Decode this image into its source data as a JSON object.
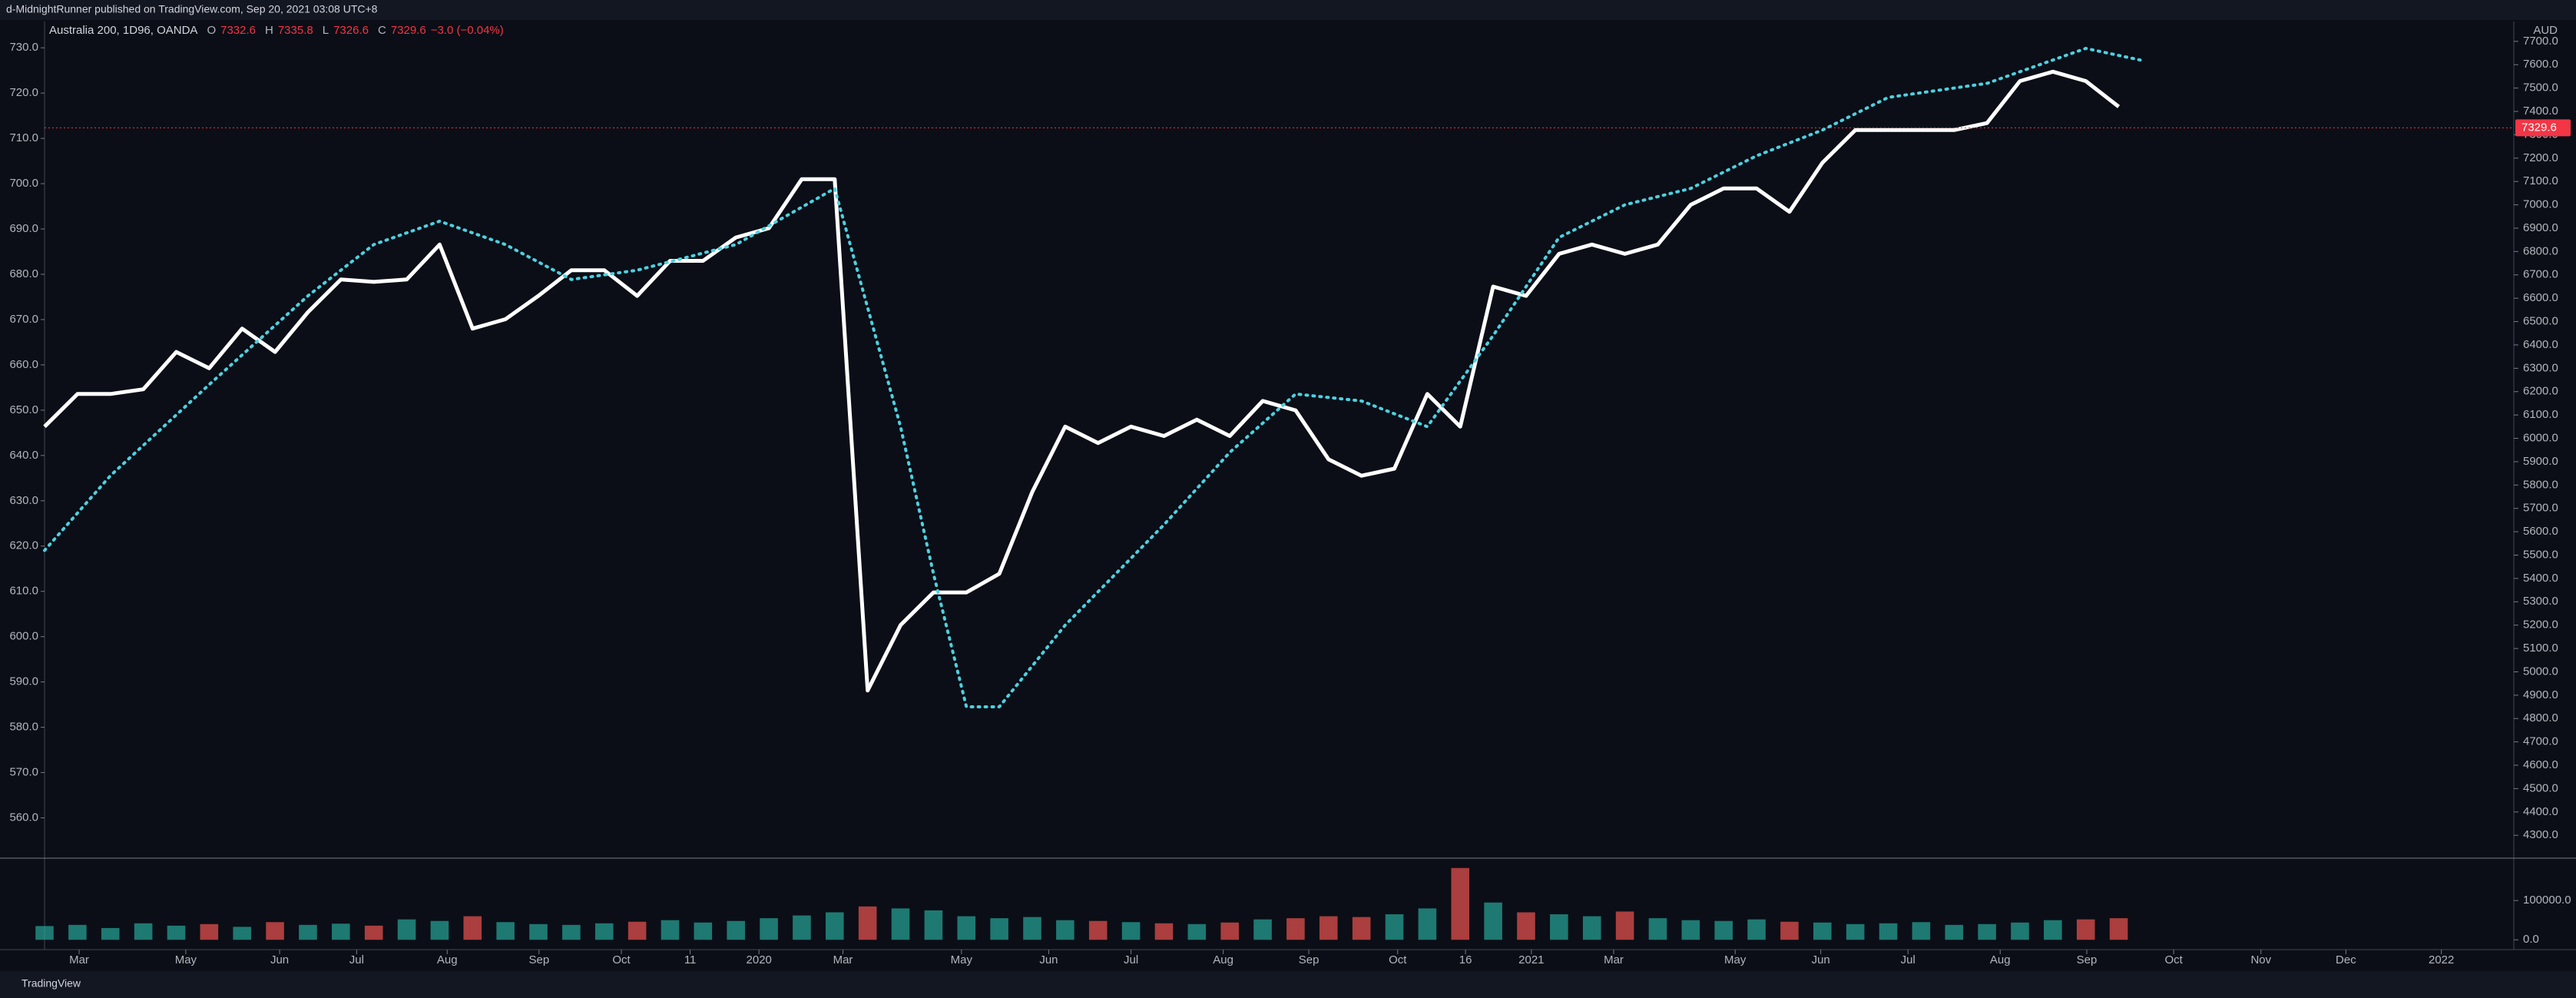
{
  "header": "d-MidnightRunner published on TradingView.com, Sep 20, 2021 03:08 UTC+8",
  "footer": "TradingView",
  "chart_data": [
    {
      "type": "line",
      "symbol": "Australia 200, 1D96, OANDA",
      "currency": "AUD",
      "ohlc": [
        {
          "label": "O",
          "value": 7332.6
        },
        {
          "label": "H",
          "value": 7335.8
        },
        {
          "label": "L",
          "value": 7326.6
        },
        {
          "label": "C",
          "value": 7329.6
        }
      ],
      "change": "−3.0 (−0.04%)",
      "xlim": [
        0,
        75
      ],
      "xticks": [
        {
          "value": 1.05,
          "label": "Mar"
        },
        {
          "value": 4.29,
          "label": "May"
        },
        {
          "value": 7.14,
          "label": "Jun"
        },
        {
          "value": 9.48,
          "label": "Jul"
        },
        {
          "value": 12.23,
          "label": "Aug"
        },
        {
          "value": 15.02,
          "label": "Sep"
        },
        {
          "value": 17.52,
          "label": "Oct"
        },
        {
          "value": 19.61,
          "label": "11"
        },
        {
          "value": 21.7,
          "label": "2020"
        },
        {
          "value": 24.25,
          "label": "Mar"
        },
        {
          "value": 27.85,
          "label": "May"
        },
        {
          "value": 30.5,
          "label": "Jun"
        },
        {
          "value": 33,
          "label": "Jul"
        },
        {
          "value": 35.8,
          "label": "Aug"
        },
        {
          "value": 38.4,
          "label": "Sep"
        },
        {
          "value": 41.1,
          "label": "Oct"
        },
        {
          "value": 43.16,
          "label": "16"
        },
        {
          "value": 45.16,
          "label": "2021"
        },
        {
          "value": 47.66,
          "label": "Mar"
        },
        {
          "value": 51.35,
          "label": "May"
        },
        {
          "value": 53.95,
          "label": "Jun"
        },
        {
          "value": 56.6,
          "label": "Jul"
        },
        {
          "value": 59.4,
          "label": "Aug"
        },
        {
          "value": 62.03,
          "label": "Sep"
        },
        {
          "value": 64.67,
          "label": "Oct"
        },
        {
          "value": 67.32,
          "label": "Nov"
        },
        {
          "value": 69.9,
          "label": "Dec"
        },
        {
          "value": 72.8,
          "label": "2022"
        }
      ],
      "ylim": [
        4202,
        7785
      ],
      "yticks": [
        {
          "value": 4300,
          "label": "4300.0"
        },
        {
          "value": 4400,
          "label": "4400.0"
        },
        {
          "value": 4500,
          "label": "4500.0"
        },
        {
          "value": 4600,
          "label": "4600.0"
        },
        {
          "value": 4700,
          "label": "4700.0"
        },
        {
          "value": 4800,
          "label": "4800.0"
        },
        {
          "value": 4900,
          "label": "4900.0"
        },
        {
          "value": 5000,
          "label": "5000.0"
        },
        {
          "value": 5100,
          "label": "5100.0"
        },
        {
          "value": 5200,
          "label": "5200.0"
        },
        {
          "value": 5300,
          "label": "5300.0"
        },
        {
          "value": 5400,
          "label": "5400.0"
        },
        {
          "value": 5500,
          "label": "5500.0"
        },
        {
          "value": 5600,
          "label": "5600.0"
        },
        {
          "value": 5700,
          "label": "5700.0"
        },
        {
          "value": 5800,
          "label": "5800.0"
        },
        {
          "value": 5900,
          "label": "5900.0"
        },
        {
          "value": 6000,
          "label": "6000.0"
        },
        {
          "value": 6100,
          "label": "6100.0"
        },
        {
          "value": 6200,
          "label": "6200.0"
        },
        {
          "value": 6300,
          "label": "6300.0"
        },
        {
          "value": 6400,
          "label": "6400.0"
        },
        {
          "value": 6500,
          "label": "6500.0"
        },
        {
          "value": 6600,
          "label": "6600.0"
        },
        {
          "value": 6700,
          "label": "6700.0"
        },
        {
          "value": 6800,
          "label": "6800.0"
        },
        {
          "value": 6900,
          "label": "6900.0"
        },
        {
          "value": 7000,
          "label": "7000.0"
        },
        {
          "value": 7100,
          "label": "7100.0"
        },
        {
          "value": 7200,
          "label": "7200.0"
        },
        {
          "value": 7300,
          "label": "7300.0"
        },
        {
          "value": 7400,
          "label": "7400.0"
        },
        {
          "value": 7500,
          "label": "7500.0"
        },
        {
          "value": 7600,
          "label": "7600.0"
        },
        {
          "value": 7700,
          "label": "7700.0"
        }
      ],
      "y2lim": [
        551.1,
        735.8
      ],
      "y2ticks": [
        {
          "value": 560,
          "label": "560.0"
        },
        {
          "value": 570,
          "label": "570.0"
        },
        {
          "value": 580,
          "label": "580.0"
        },
        {
          "value": 590,
          "label": "590.0"
        },
        {
          "value": 600,
          "label": "600.0"
        },
        {
          "value": 610,
          "label": "610.0"
        },
        {
          "value": 620,
          "label": "620.0"
        },
        {
          "value": 630,
          "label": "630.0"
        },
        {
          "value": 640,
          "label": "640.0"
        },
        {
          "value": 650,
          "label": "650.0"
        },
        {
          "value": 660,
          "label": "660.0"
        },
        {
          "value": 670,
          "label": "670.0"
        },
        {
          "value": 680,
          "label": "680.0"
        },
        {
          "value": 690,
          "label": "690.0"
        },
        {
          "value": 700,
          "label": "700.0"
        },
        {
          "value": 710,
          "label": "710.0"
        },
        {
          "value": 720,
          "label": "720.0"
        },
        {
          "value": 730,
          "label": "730.0"
        }
      ],
      "grid": false,
      "series": [
        {
          "color": "#ffffff",
          "values": [
            6050,
            6190,
            6190,
            6210,
            6370,
            6300,
            6470,
            6370,
            6540,
            6680,
            6670,
            6680,
            6830,
            6470,
            6510,
            6610,
            6720,
            6720,
            6610,
            6760,
            6760,
            6860,
            6900,
            7110,
            7110,
            4920,
            5200,
            5340,
            5340,
            5420,
            5770,
            6050,
            5980,
            6050,
            6010,
            6080,
            6010,
            6160,
            6120,
            5910,
            5840,
            5870,
            6190,
            6050,
            6650,
            6610,
            6790,
            6830,
            6790,
            6830,
            7000,
            7070,
            7070,
            6970,
            7180,
            7320,
            7320,
            7320,
            7320,
            7350,
            7530,
            7570,
            7530,
            7420
          ]
        },
        {
          "color": "#4dd0e1",
          "dashed": true,
          "x": [
            0,
            2,
            5,
            8,
            10,
            12,
            14,
            16,
            18,
            21,
            24,
            26,
            27,
            28,
            29,
            31,
            34,
            36,
            38,
            40,
            42,
            44,
            46,
            48,
            50,
            52,
            54,
            56,
            59,
            62,
            63.65
          ],
          "values": [
            5520,
            5840,
            6230,
            6610,
            6830,
            6930,
            6830,
            6680,
            6720,
            6830,
            7070,
            6050,
            5420,
            4850,
            4850,
            5200,
            5630,
            5940,
            6190,
            6160,
            6050,
            6440,
            6860,
            7000,
            7070,
            7210,
            7320,
            7460,
            7520,
            7670,
            7620
          ]
        }
      ]
    },
    {
      "type": "bar",
      "up_color": "#26a69a",
      "down_color": "#ef5350",
      "xlim": [
        0,
        75
      ],
      "ylim": [
        -25000,
        208000
      ],
      "yticks": [
        {
          "value": 0,
          "label": "0.0"
        },
        {
          "value": 100000,
          "label": "100000.0"
        }
      ],
      "values": [
        35000,
        38000,
        30000,
        42000,
        36000,
        40000,
        33000,
        45000,
        38000,
        41000,
        36000,
        52000,
        48000,
        60000,
        45000,
        40000,
        38000,
        42000,
        46000,
        50000,
        44000,
        48000,
        55000,
        62000,
        70000,
        85000,
        80000,
        75000,
        60000,
        55000,
        58000,
        50000,
        48000,
        45000,
        42000,
        40000,
        44000,
        52000,
        55000,
        60000,
        58000,
        65000,
        80000,
        183000,
        95000,
        70000,
        65000,
        60000,
        72000,
        55000,
        50000,
        48000,
        52000,
        46000,
        44000,
        40000,
        42000,
        45000,
        38000,
        40000,
        44000,
        50000,
        52000,
        55000
      ]
    }
  ]
}
